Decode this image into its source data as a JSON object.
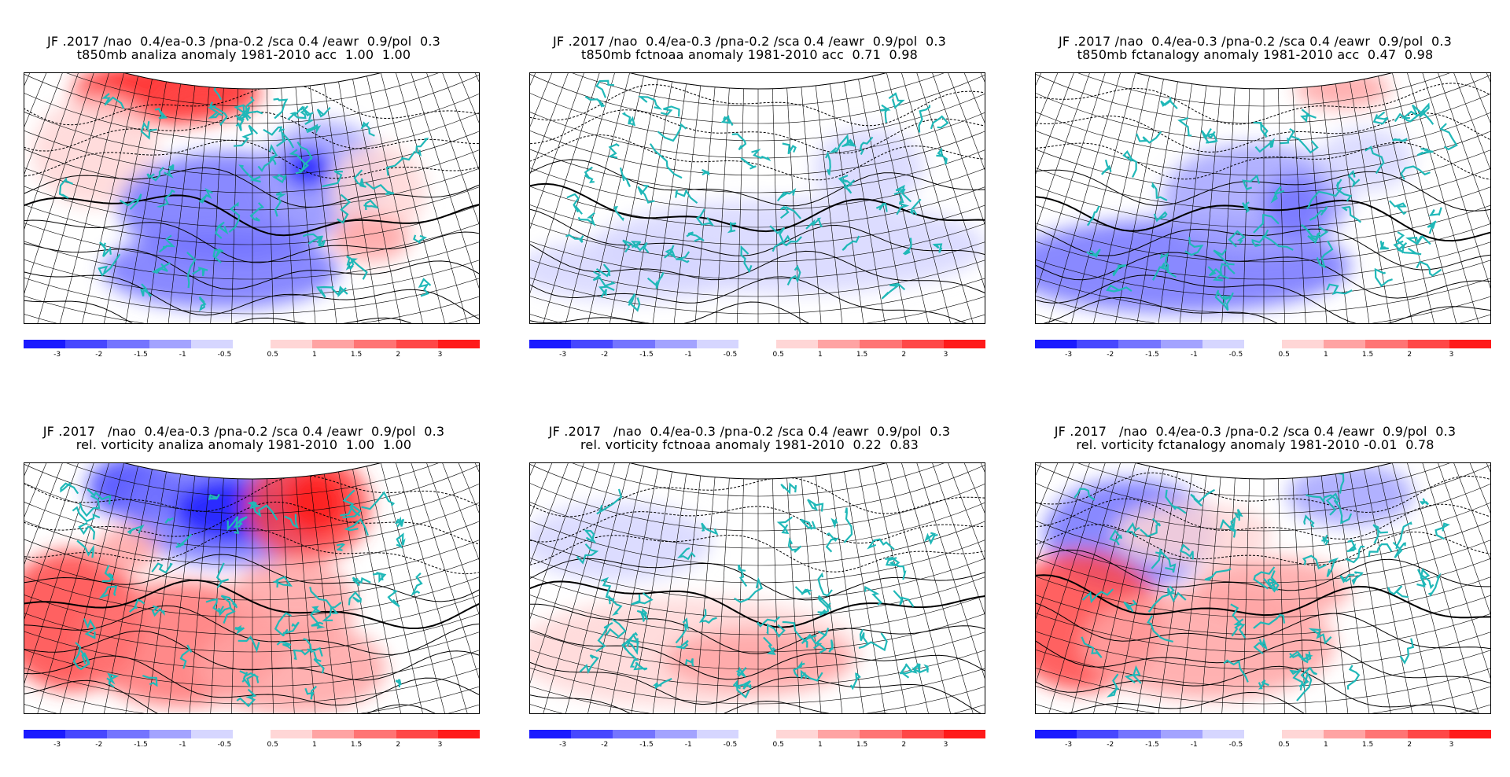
{
  "colors": {
    "neg": [
      "#1a1aff",
      "#4747ff",
      "#7474ff",
      "#a3a3ff",
      "#d6d6ff"
    ],
    "pos": [
      "#ffd6d6",
      "#ffa3a3",
      "#ff7474",
      "#ff4747",
      "#ff1a1a"
    ],
    "coast": "#20b8b8",
    "grid": "#000000"
  },
  "colorbar": {
    "neg_ticks": [
      "-3",
      "-2",
      "-1.5",
      "-1",
      "-0.5"
    ],
    "pos_ticks": [
      "0.5",
      "1",
      "1.5",
      "2",
      "3"
    ]
  },
  "panels": [
    {
      "title1": "JF .2017 /nao  0.4/ea-0.3 /pna-0.2 /sca 0.4 /eawr  0.9/pol  0.3",
      "title2": "t850mb analiza anomaly 1981-2010 acc  1.00  1.00",
      "icon": "t850-analysis-map"
    },
    {
      "title1": "JF .2017 /nao  0.4/ea-0.3 /pna-0.2 /sca 0.4 /eawr  0.9/pol  0.3",
      "title2": "t850mb fctnoaa anomaly 1981-2010 acc  0.71  0.98",
      "icon": "t850-noaa-forecast-map"
    },
    {
      "title1": "JF .2017 /nao  0.4/ea-0.3 /pna-0.2 /sca 0.4 /eawr  0.9/pol  0.3",
      "title2": "t850mb fctanalogy anomaly 1981-2010 acc  0.47  0.98",
      "icon": "t850-analogy-forecast-map"
    },
    {
      "title1": "JF .2017   /nao  0.4/ea-0.3 /pna-0.2 /sca 0.4 /eawr  0.9/pol  0.3",
      "title2": "rel. vorticity analiza anomaly 1981-2010  1.00  1.00",
      "icon": "vorticity-analysis-map"
    },
    {
      "title1": "JF .2017   /nao  0.4/ea-0.3 /pna-0.2 /sca 0.4 /eawr  0.9/pol  0.3",
      "title2": "rel. vorticity fctnoaa anomaly 1981-2010  0.22  0.83",
      "icon": "vorticity-noaa-forecast-map"
    },
    {
      "title1": "JF .2017   /nao  0.4/ea-0.3 /pna-0.2 /sca 0.4 /eawr  0.9/pol  0.3",
      "title2": "rel. vorticity fctanalogy anomaly 1981-2010 -0.01  0.78",
      "icon": "vorticity-analogy-forecast-map"
    }
  ]
}
